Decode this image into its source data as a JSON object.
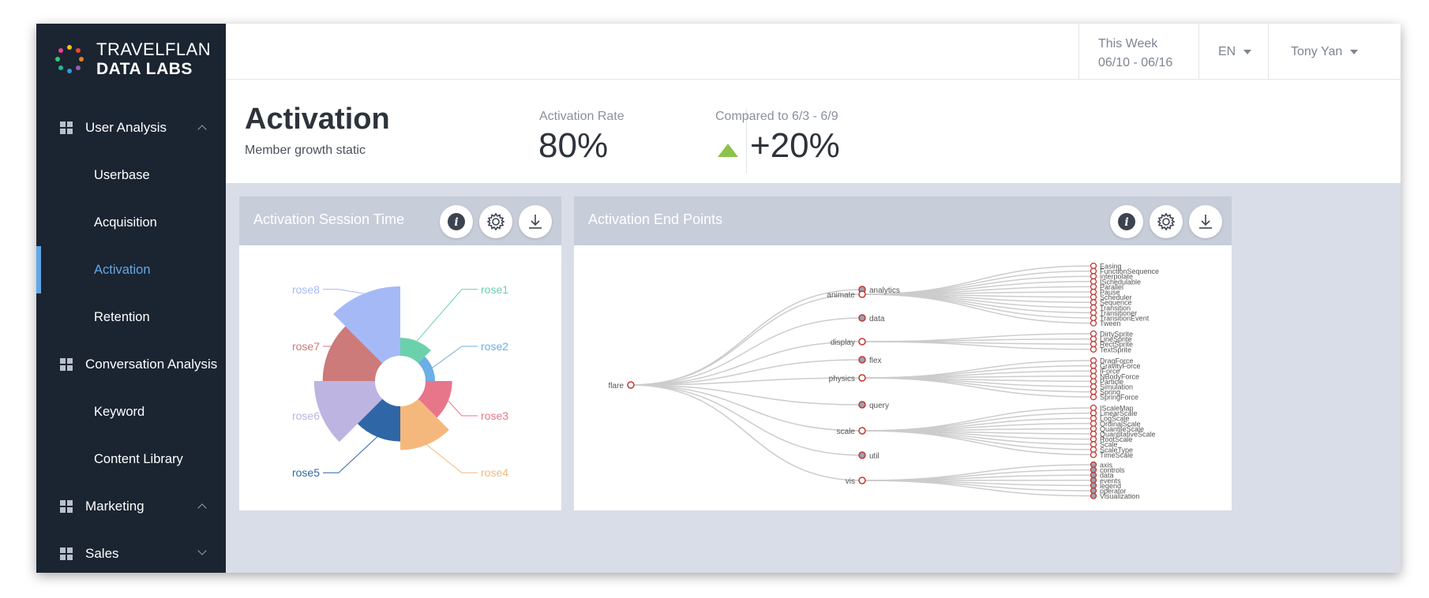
{
  "brand": {
    "line1": "TRAVELFLAN",
    "line2": "DATA LABS"
  },
  "sidebar": {
    "groups": [
      {
        "label": "User Analysis",
        "items": [
          "Userbase",
          "Acquisition",
          "Activation",
          "Retention"
        ]
      },
      {
        "label": "Conversation Analysis",
        "items": [
          "Keyword",
          "Content Library"
        ]
      },
      {
        "label": "Marketing",
        "items": []
      },
      {
        "label": "Sales",
        "items": []
      }
    ]
  },
  "header": {
    "period_label": "This Week",
    "period_range": "06/10 - 06/16",
    "language": "EN",
    "user": "Tony Yan"
  },
  "summary": {
    "title": "Activation",
    "subtitle": "Member growth static",
    "rate_label": "Activation Rate",
    "rate_value": "80%",
    "compare_label": "Compared to 6/3 - 6/9",
    "compare_value": "+20%"
  },
  "cards": {
    "session_title": "Activation Session Time",
    "endpoints_title": "Activation End Points"
  },
  "colors": {
    "accent": "#5fa8e8",
    "sidebar_bg": "#1b2431",
    "up": "#8bc34a",
    "node_stroke": "#c23531"
  },
  "chart_data": [
    {
      "type": "pie",
      "subtype": "rose",
      "categories": [
        "rose1",
        "rose2",
        "rose3",
        "rose4",
        "rose5",
        "rose6",
        "rose7",
        "rose8"
      ],
      "values": [
        10,
        5,
        15,
        25,
        20,
        35,
        30,
        40
      ],
      "colors": [
        "#6bd1ab",
        "#6caee6",
        "#e8768a",
        "#f4b87c",
        "#2f66a6",
        "#bdb4e1",
        "#cc7a7a",
        "#a6b9f7"
      ]
    },
    {
      "type": "tree",
      "root": "flare",
      "children": [
        {
          "name": "analytics",
          "leaf": true
        },
        {
          "name": "animate",
          "children": [
            "Easing",
            "FunctionSequence",
            "interpolate",
            "ISchedulable",
            "Parallel",
            "Pause",
            "Scheduler",
            "Sequence",
            "Transition",
            "Transitioner",
            "TransitionEvent",
            "Tween"
          ]
        },
        {
          "name": "data",
          "leaf": true
        },
        {
          "name": "display",
          "children": [
            "DirtySprite",
            "LineSprite",
            "RectSprite",
            "TextSprite"
          ]
        },
        {
          "name": "flex",
          "leaf": true
        },
        {
          "name": "physics",
          "children": [
            "DragForce",
            "GravityForce",
            "IForce",
            "NBodyForce",
            "Particle",
            "Simulation",
            "Spring",
            "SpringForce"
          ]
        },
        {
          "name": "query",
          "leaf": true
        },
        {
          "name": "scale",
          "children": [
            "IScaleMap",
            "LinearScale",
            "LogScale",
            "OrdinalScale",
            "QuantileScale",
            "QuantitativeScale",
            "RootScale",
            "Scale",
            "ScaleType",
            "TimeScale"
          ]
        },
        {
          "name": "util",
          "leaf": true
        },
        {
          "name": "vis",
          "children": [
            "axis",
            "controls",
            "data",
            "events",
            "legend",
            "operator",
            "Visualization"
          ],
          "leaf_children": true
        }
      ]
    }
  ]
}
